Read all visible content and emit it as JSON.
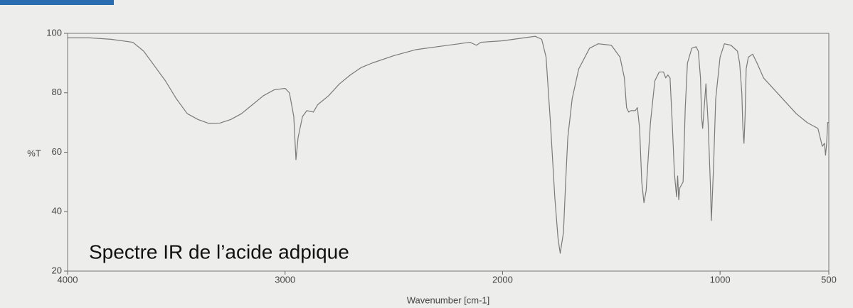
{
  "chart_data": {
    "type": "line",
    "annotation": "Spectre IR de l’acide adpique",
    "xlabel": "Wavenumber [cm-1]",
    "ylabel": "%T",
    "xlim": [
      4000,
      500
    ],
    "ylim": [
      20,
      100
    ],
    "xticks": [
      4000,
      3000,
      2000,
      1000,
      500
    ],
    "yticks": [
      20,
      40,
      60,
      80,
      100
    ],
    "color": "#7a7a7a",
    "x": [
      4000,
      3900,
      3800,
      3700,
      3650,
      3600,
      3550,
      3500,
      3450,
      3400,
      3350,
      3300,
      3250,
      3200,
      3150,
      3100,
      3050,
      3000,
      2980,
      2960,
      2950,
      2940,
      2920,
      2900,
      2870,
      2850,
      2800,
      2750,
      2700,
      2650,
      2600,
      2500,
      2400,
      2300,
      2200,
      2150,
      2120,
      2100,
      2000,
      1900,
      1850,
      1820,
      1800,
      1780,
      1760,
      1745,
      1735,
      1720,
      1710,
      1700,
      1680,
      1650,
      1600,
      1560,
      1500,
      1460,
      1440,
      1430,
      1420,
      1410,
      1390,
      1380,
      1370,
      1360,
      1350,
      1340,
      1320,
      1300,
      1280,
      1260,
      1250,
      1240,
      1230,
      1220,
      1210,
      1200,
      1195,
      1190,
      1185,
      1170,
      1160,
      1150,
      1130,
      1110,
      1100,
      1090,
      1085,
      1080,
      1075,
      1065,
      1055,
      1045,
      1040,
      1030,
      1020,
      1000,
      980,
      950,
      920,
      910,
      900,
      895,
      890,
      885,
      880,
      870,
      850,
      830,
      800,
      750,
      700,
      650,
      600,
      550,
      530,
      520,
      515,
      510,
      505,
      500
    ],
    "values": [
      98.5,
      98.5,
      98,
      97,
      94,
      89,
      84,
      78,
      73,
      71,
      69.7,
      69.8,
      71,
      73,
      76,
      79,
      81,
      81.5,
      80,
      72,
      57.5,
      65,
      72,
      74,
      73.5,
      76,
      79,
      83,
      86,
      88.5,
      90,
      92.5,
      94.5,
      95.5,
      96.5,
      97,
      96,
      97,
      97.5,
      98.5,
      99,
      98,
      92,
      70,
      45,
      31,
      26,
      33,
      50,
      65,
      78,
      88,
      95,
      96.5,
      96,
      92,
      85,
      75,
      73.5,
      74,
      74,
      75,
      68,
      50,
      43,
      47,
      70,
      84,
      87,
      87,
      85,
      86,
      85,
      70,
      53,
      45,
      52,
      44,
      48,
      50,
      75,
      90,
      95,
      95.5,
      94,
      85,
      72,
      68,
      73,
      83,
      70,
      50,
      37,
      55,
      78,
      92,
      96.5,
      96,
      94,
      90,
      80,
      68,
      63,
      72,
      88,
      92,
      93,
      90,
      85,
      81,
      77,
      73,
      70,
      68,
      62,
      63,
      59,
      63,
      70,
      70
    ]
  }
}
